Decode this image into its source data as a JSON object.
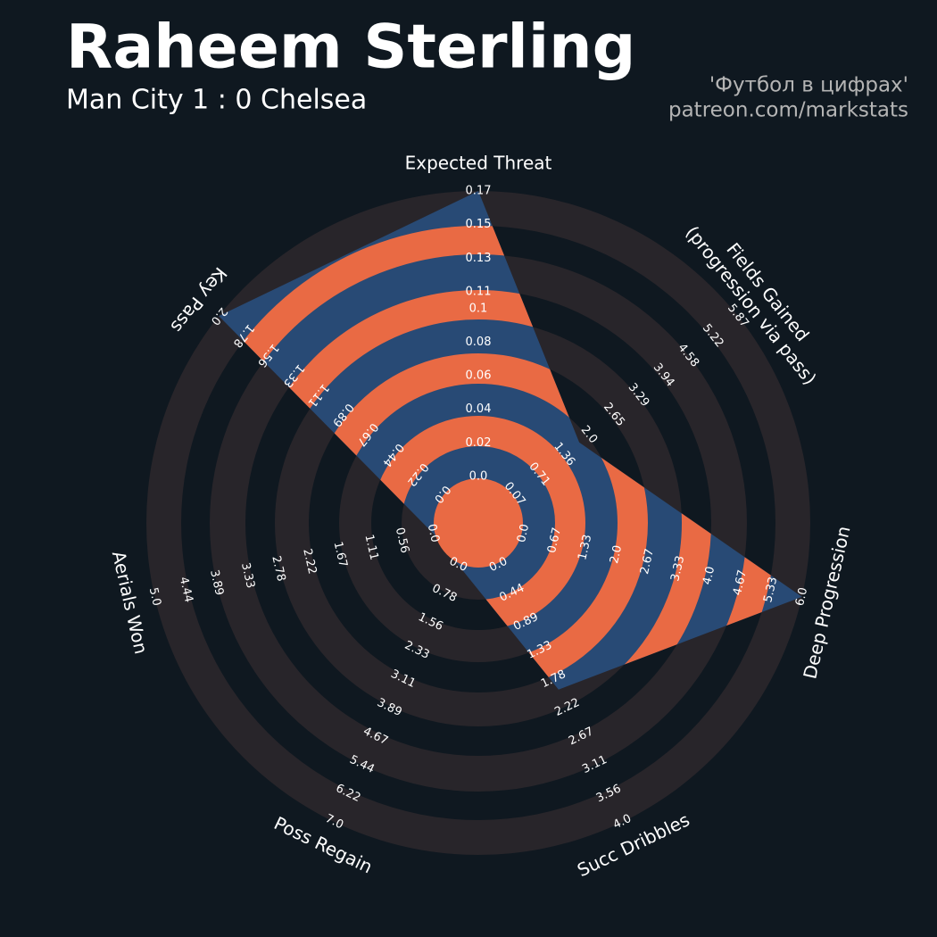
{
  "title": "Raheem Sterling",
  "subtitle": "Man City 1 : 0 Chelsea",
  "credits": [
    "'Футбол в цифрах'",
    "patreon.com/markstats"
  ],
  "chart_data": {
    "type": "radar",
    "categories": [
      "Expected Threat",
      "Fields Gained\n(progression via pass)",
      "Deep Progression",
      "Succ Dribbles",
      "Poss Regain",
      "Aerials Won",
      "Key Pass"
    ],
    "values": [
      0.17,
      1.75,
      6,
      1.94,
      0,
      0,
      2
    ],
    "ticks": [
      [
        {
          "value": 0,
          "label": "0.0"
        },
        0.02,
        0.04,
        0.06,
        0.08,
        0.1,
        0.11,
        0.13,
        0.15,
        0.17
      ],
      [
        0.07,
        0.71,
        1.36,
        {
          "value": 2,
          "label": "2.0"
        },
        2.65,
        3.29,
        3.94,
        4.58,
        5.22,
        5.87
      ],
      [
        {
          "value": 0,
          "label": "0.0"
        },
        0.67,
        1.33,
        {
          "value": 2,
          "label": "2.0"
        },
        2.67,
        3.33,
        {
          "value": 4,
          "label": "4.0"
        },
        4.67,
        5.33,
        {
          "value": 6,
          "label": "6.0"
        }
      ],
      [
        {
          "value": 0,
          "label": "0.0"
        },
        0.44,
        0.89,
        1.33,
        1.78,
        2.22,
        2.67,
        3.11,
        3.56,
        {
          "value": 4,
          "label": "4.0"
        }
      ],
      [
        {
          "value": 0,
          "label": "0.0"
        },
        0.78,
        1.56,
        2.33,
        3.11,
        3.89,
        4.67,
        5.44,
        6.22,
        {
          "value": 7,
          "label": "7.0"
        }
      ],
      [
        {
          "value": 0,
          "label": "0.0"
        },
        0.56,
        1.11,
        1.67,
        2.22,
        2.78,
        3.33,
        3.89,
        4.44,
        {
          "value": 5,
          "label": "5.0"
        }
      ],
      [
        {
          "value": 0,
          "label": "0.0"
        },
        0.22,
        0.44,
        0.67,
        0.89,
        1.11,
        1.33,
        1.56,
        1.78,
        {
          "value": 2,
          "label": "2.0"
        }
      ]
    ],
    "color": "#284a75",
    "highlight_color": "#e96a44",
    "ring_color": "#28252a"
  }
}
